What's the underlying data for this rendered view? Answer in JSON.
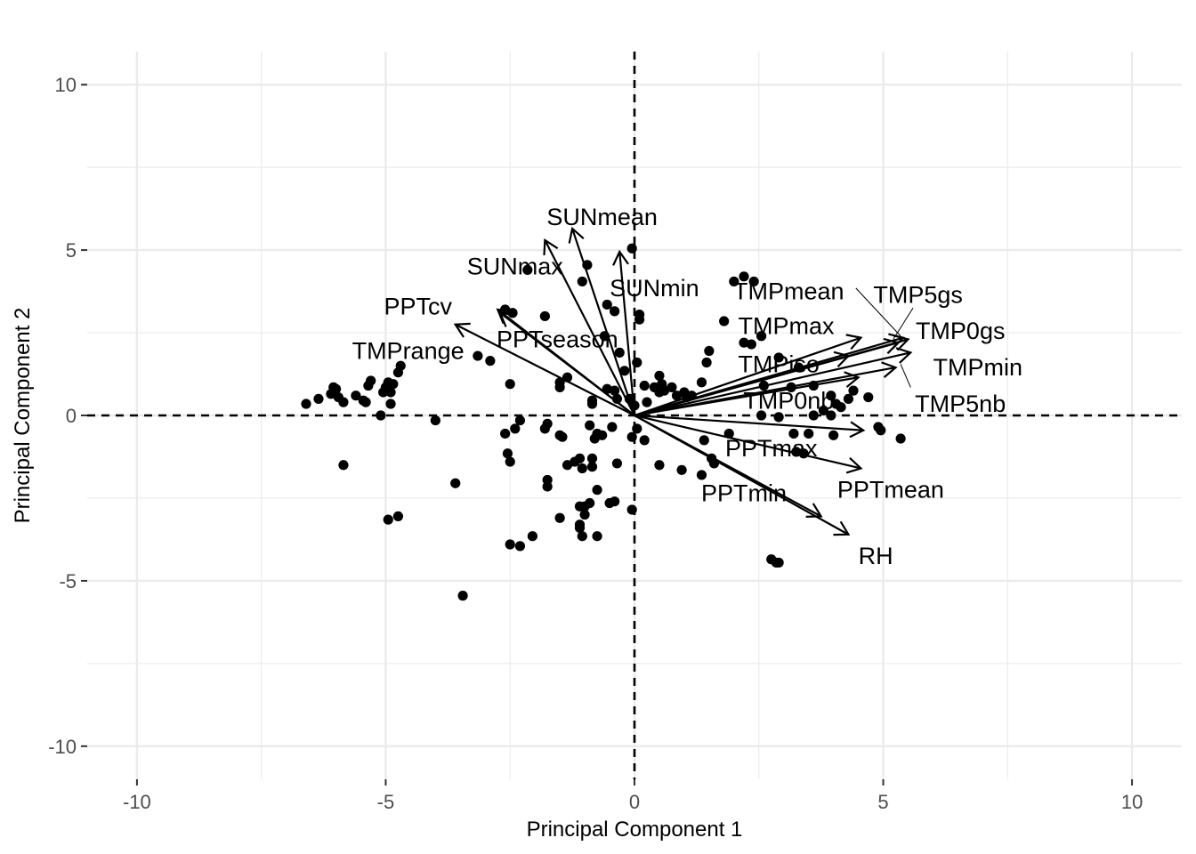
{
  "chart_data": {
    "type": "scatter",
    "subtype": "pca-biplot",
    "xlabel": "Principal Component 1",
    "ylabel": "Principal Component 2",
    "xlim": [
      -11,
      11
    ],
    "ylim": [
      -11,
      11
    ],
    "x_ticks": [
      -10,
      -5,
      0,
      5,
      10
    ],
    "y_ticks": [
      10,
      5,
      0,
      -5,
      -10
    ],
    "x_tick_labels": [
      "-10",
      "-5",
      "0",
      "5",
      "10"
    ],
    "y_tick_labels": [
      "10",
      "5",
      "0",
      "-5",
      "-10"
    ],
    "grid": true,
    "reference_lines": [
      "x=0 dashed",
      "y=0 dashed"
    ],
    "point_color": "#000000",
    "grid_color": "#ebebeb",
    "points": [
      [
        -6.6,
        0.35
      ],
      [
        -6.35,
        0.5
      ],
      [
        -6.1,
        0.65
      ],
      [
        -6.05,
        0.85
      ],
      [
        -6.0,
        0.8
      ],
      [
        -5.95,
        0.55
      ],
      [
        -5.85,
        0.4
      ],
      [
        -5.6,
        0.6
      ],
      [
        -5.45,
        0.45
      ],
      [
        -5.4,
        0.4
      ],
      [
        -5.35,
        0.9
      ],
      [
        -5.3,
        1.05
      ],
      [
        -5.1,
        0.0
      ],
      [
        -5.05,
        0.7
      ],
      [
        -5.0,
        0.85
      ],
      [
        -4.95,
        1.0
      ],
      [
        -4.9,
        0.7
      ],
      [
        -4.85,
        0.95
      ],
      [
        -4.9,
        0.35
      ],
      [
        -4.75,
        1.3
      ],
      [
        -4.7,
        1.5
      ],
      [
        -4.0,
        -0.15
      ],
      [
        -5.85,
        -1.5
      ],
      [
        -3.6,
        -2.05
      ],
      [
        -4.95,
        -3.15
      ],
      [
        -4.75,
        -3.05
      ],
      [
        -3.45,
        -5.45
      ],
      [
        -3.15,
        1.8
      ],
      [
        -2.9,
        1.65
      ],
      [
        -2.6,
        3.2
      ],
      [
        -2.45,
        3.1
      ],
      [
        -2.15,
        4.4
      ],
      [
        -1.8,
        3.0
      ],
      [
        -1.5,
        1.0
      ],
      [
        -1.35,
        1.15
      ],
      [
        -1.05,
        4.05
      ],
      [
        -0.95,
        4.55
      ],
      [
        -0.6,
        2.4
      ],
      [
        -0.55,
        3.35
      ],
      [
        -0.4,
        3.15
      ],
      [
        -0.3,
        1.9
      ],
      [
        -0.4,
        0.75
      ],
      [
        -0.2,
        1.35
      ],
      [
        -0.1,
        0.5
      ],
      [
        0.0,
        0.3
      ],
      [
        -0.05,
        5.05
      ],
      [
        0.1,
        3.05
      ],
      [
        0.1,
        2.9
      ],
      [
        0.05,
        1.6
      ],
      [
        0.2,
        0.9
      ],
      [
        0.25,
        0.4
      ],
      [
        0.4,
        0.85
      ],
      [
        0.5,
        0.7
      ],
      [
        0.5,
        1.2
      ],
      [
        0.55,
        0.95
      ],
      [
        0.6,
        0.75
      ],
      [
        0.75,
        0.85
      ],
      [
        0.85,
        0.6
      ],
      [
        1.0,
        0.7
      ],
      [
        1.05,
        0.55
      ],
      [
        1.15,
        0.6
      ],
      [
        1.35,
        1.0
      ],
      [
        1.45,
        1.6
      ],
      [
        1.5,
        1.95
      ],
      [
        1.8,
        2.85
      ],
      [
        2.2,
        4.2
      ],
      [
        2.4,
        4.05
      ],
      [
        2.0,
        4.05
      ],
      [
        2.2,
        2.2
      ],
      [
        2.35,
        2.15
      ],
      [
        2.55,
        2.4
      ],
      [
        2.6,
        0.9
      ],
      [
        2.9,
        1.75
      ],
      [
        3.3,
        1.45
      ],
      [
        3.15,
        0.85
      ],
      [
        3.6,
        0.9
      ],
      [
        3.95,
        0.6
      ],
      [
        4.05,
        0.35
      ],
      [
        4.15,
        0.25
      ],
      [
        4.3,
        0.5
      ],
      [
        4.4,
        0.75
      ],
      [
        4.7,
        0.55
      ],
      [
        3.8,
        0.15
      ],
      [
        3.95,
        0.0
      ],
      [
        2.55,
        0.0
      ],
      [
        2.9,
        -0.05
      ],
      [
        3.6,
        0.0
      ],
      [
        1.9,
        -0.55
      ],
      [
        1.4,
        -0.75
      ],
      [
        3.2,
        -0.55
      ],
      [
        3.5,
        -0.55
      ],
      [
        4.0,
        -0.6
      ],
      [
        4.9,
        -0.35
      ],
      [
        4.95,
        -0.45
      ],
      [
        5.35,
        -0.7
      ],
      [
        3.25,
        -1.1
      ],
      [
        3.4,
        -1.15
      ],
      [
        1.55,
        -1.3
      ],
      [
        1.6,
        -1.45
      ],
      [
        1.35,
        -1.8
      ],
      [
        0.95,
        -1.65
      ],
      [
        0.5,
        -1.5
      ],
      [
        0.2,
        -0.75
      ],
      [
        0.05,
        -0.4
      ],
      [
        -0.05,
        -0.65
      ],
      [
        2.75,
        -4.35
      ],
      [
        2.85,
        -4.45
      ],
      [
        2.9,
        -4.45
      ],
      [
        -2.6,
        -0.55
      ],
      [
        -2.55,
        -1.15
      ],
      [
        -2.5,
        -1.4
      ],
      [
        -2.4,
        -0.4
      ],
      [
        -2.3,
        -0.15
      ],
      [
        -2.5,
        0.95
      ],
      [
        -1.8,
        -0.4
      ],
      [
        -1.75,
        -0.25
      ],
      [
        -1.5,
        -0.6
      ],
      [
        -1.45,
        -0.65
      ],
      [
        -1.35,
        -1.5
      ],
      [
        -1.2,
        -1.4
      ],
      [
        -1.1,
        -1.3
      ],
      [
        -1.05,
        -1.6
      ],
      [
        -0.9,
        -0.3
      ],
      [
        -0.85,
        -1.3
      ],
      [
        -0.85,
        -1.55
      ],
      [
        -0.8,
        -0.7
      ],
      [
        -0.75,
        -0.55
      ],
      [
        -0.65,
        -0.6
      ],
      [
        -0.45,
        -0.35
      ],
      [
        -0.35,
        -1.45
      ],
      [
        -1.5,
        0.85
      ],
      [
        -0.85,
        0.35
      ],
      [
        -0.85,
        0.45
      ],
      [
        -0.55,
        0.8
      ],
      [
        -0.35,
        0.5
      ],
      [
        -1.75,
        -1.95
      ],
      [
        -1.75,
        -2.15
      ],
      [
        -1.5,
        -3.1
      ],
      [
        -1.1,
        -2.75
      ],
      [
        -1.0,
        -2.75
      ],
      [
        -1.0,
        -3.0
      ],
      [
        -0.9,
        -2.65
      ],
      [
        -0.75,
        -2.25
      ],
      [
        -0.5,
        -2.65
      ],
      [
        -0.4,
        -2.6
      ],
      [
        -0.05,
        -2.85
      ],
      [
        -1.1,
        -3.4
      ],
      [
        -1.05,
        -3.65
      ],
      [
        -0.75,
        -3.65
      ],
      [
        -2.05,
        -3.65
      ],
      [
        -2.3,
        -3.95
      ],
      [
        -2.5,
        -3.9
      ],
      [
        -1.1,
        -3.3
      ]
    ],
    "loadings": [
      {
        "name": "SUNmean",
        "x": -1.25,
        "y": 5.65
      },
      {
        "name": "SUNmax",
        "x": -1.8,
        "y": 5.3
      },
      {
        "name": "SUNmin",
        "x": -0.3,
        "y": 4.95
      },
      {
        "name": "PPTcv",
        "x": -3.6,
        "y": 2.75
      },
      {
        "name": "PPTseason",
        "x": -2.75,
        "y": 3.2
      },
      {
        "name": "TMPrange",
        "x": -2.7,
        "y": 3.1
      },
      {
        "name": "TMPmean",
        "x": 5.4,
        "y": 2.35
      },
      {
        "name": "TMP5gs",
        "x": 5.3,
        "y": 2.2
      },
      {
        "name": "TMP0gs",
        "x": 5.5,
        "y": 2.3
      },
      {
        "name": "TMPmax",
        "x": 4.55,
        "y": 2.35
      },
      {
        "name": "TMPiso",
        "x": 4.3,
        "y": 1.8
      },
      {
        "name": "TMPmin",
        "x": 5.55,
        "y": 1.9
      },
      {
        "name": "TMP0nb",
        "x": 5.25,
        "y": 1.45
      },
      {
        "name": "TMP5nb",
        "x": 4.5,
        "y": 1.15
      },
      {
        "name": "PPTmax",
        "x": 4.6,
        "y": -0.45
      },
      {
        "name": "PPTmean",
        "x": 4.55,
        "y": -1.6
      },
      {
        "name": "PPTmin",
        "x": 3.75,
        "y": -3.05
      },
      {
        "name": "RH",
        "x": 4.3,
        "y": -3.6
      }
    ],
    "loading_labels": [
      {
        "text": "SUNmean",
        "x": -0.65,
        "y": 6.0
      },
      {
        "text": "SUNmax",
        "x": -2.4,
        "y": 4.5
      },
      {
        "text": "SUNmin",
        "x": 0.4,
        "y": 3.85
      },
      {
        "text": "PPTcv",
        "x": -4.35,
        "y": 3.3
      },
      {
        "text": "PPTseason",
        "x": -1.55,
        "y": 2.3
      },
      {
        "text": "TMPrange",
        "x": -4.55,
        "y": 1.95
      },
      {
        "text": "TMPmean",
        "x": 3.1,
        "y": 3.75
      },
      {
        "text": "TMP5gs",
        "x": 5.7,
        "y": 3.65
      },
      {
        "text": "TMP0gs",
        "x": 6.55,
        "y": 2.55
      },
      {
        "text": "TMPmax",
        "x": 3.05,
        "y": 2.7
      },
      {
        "text": "TMPiso",
        "x": 2.9,
        "y": 1.55
      },
      {
        "text": "TMPmin",
        "x": 6.9,
        "y": 1.45
      },
      {
        "text": "TMP0nb",
        "x": 3.1,
        "y": 0.45
      },
      {
        "text": "TMP5nb",
        "x": 6.55,
        "y": 0.35
      },
      {
        "text": "PPTmax",
        "x": 2.75,
        "y": -1.0
      },
      {
        "text": "PPTmean",
        "x": 5.15,
        "y": -2.25
      },
      {
        "text": "PPTmin",
        "x": 2.2,
        "y": -2.35
      },
      {
        "text": "RH",
        "x": 4.85,
        "y": -4.25
      }
    ],
    "label_leaders": [
      {
        "from": [
          4.45,
          3.85
        ],
        "to": [
          5.35,
          2.4
        ]
      },
      {
        "from": [
          5.6,
          3.25
        ],
        "to": [
          5.2,
          2.3
        ]
      },
      {
        "from": [
          5.55,
          0.85
        ],
        "to": [
          5.35,
          1.55
        ]
      }
    ]
  }
}
